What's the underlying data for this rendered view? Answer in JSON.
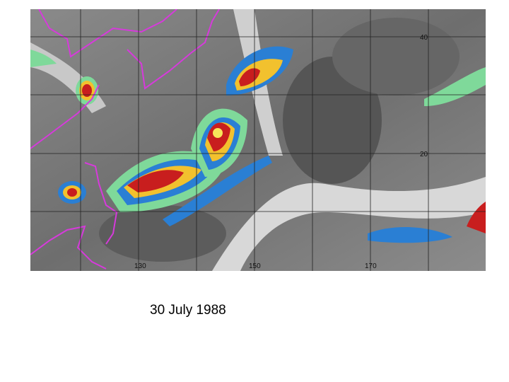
{
  "map": {
    "caption": "30 July 1988",
    "longitude_labels": [
      "130",
      "150",
      "170"
    ],
    "latitude_labels": [
      "40",
      "20"
    ]
  }
}
